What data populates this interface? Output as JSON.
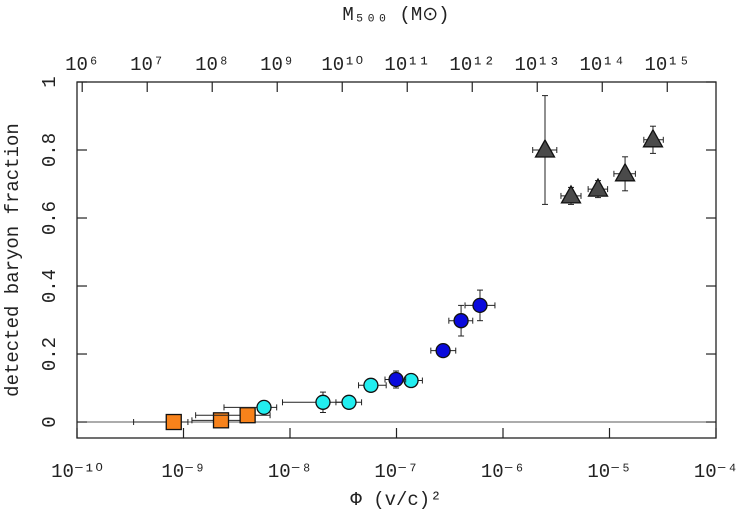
{
  "chart_data": {
    "type": "scatter",
    "xlabel": "Φ (v/c)²",
    "ylabel": "detected baryon fraction",
    "x2label": "M₅₀₀ (M⊙)",
    "xscale": "log",
    "x2scale": "log",
    "xlim": [
      1e-10,
      0.0001
    ],
    "xticks": [
      {
        "value": 1e-10,
        "label": "10⁻¹⁰"
      },
      {
        "value": 1e-09,
        "label": "10⁻⁹"
      },
      {
        "value": 1e-08,
        "label": "10⁻⁸"
      },
      {
        "value": 1e-07,
        "label": "10⁻⁷"
      },
      {
        "value": 1e-06,
        "label": "10⁻⁶"
      },
      {
        "value": 1e-05,
        "label": "10⁻⁵"
      },
      {
        "value": 0.0001,
        "label": "10⁻⁴"
      }
    ],
    "x2lim": [
      831764,
      5620000000000000
    ],
    "x2ticks": [
      {
        "value": 1000000.0,
        "label": "10⁶"
      },
      {
        "value": 10000000.0,
        "label": "10⁷"
      },
      {
        "value": 100000000.0,
        "label": "10⁸"
      },
      {
        "value": 1000000000.0,
        "label": "10⁹"
      },
      {
        "value": 10000000000.0,
        "label": "10¹⁰"
      },
      {
        "value": 100000000000.0,
        "label": "10¹¹"
      },
      {
        "value": 1000000000000.0,
        "label": "10¹²"
      },
      {
        "value": 10000000000000.0,
        "label": "10¹³"
      },
      {
        "value": 100000000000000.0,
        "label": "10¹⁴"
      },
      {
        "value": 1000000000000000.0,
        "label": "10¹⁵"
      }
    ],
    "ylim": [
      -0.047,
      1
    ],
    "yticks": [
      0,
      0.2,
      0.4,
      0.6,
      0.8,
      1
    ],
    "hline": 0,
    "series": [
      {
        "color": "#f7821b",
        "marker": "square",
        "x": [
          8.1e-10,
          2.25e-09,
          4e-09
        ],
        "values": [
          0,
          0.005,
          0.02
        ],
        "yerr": [
          0.004,
          0.004,
          0.004
        ],
        "x_low": [
          3.4e-10,
          1.2e-09,
          1.3e-09
        ],
        "x_high": [
          1.1e-09,
          3.5e-09,
          6.5e-09
        ]
      },
      {
        "color": "#22eef0",
        "marker": "circle",
        "x": [
          5.7e-09,
          2.04e-08,
          3.58e-08,
          5.75e-08,
          1.37e-07
        ],
        "values": [
          0.043,
          0.058,
          0.058,
          0.108,
          0.122
        ],
        "yerr": [
          0.01,
          0.03,
          0.01,
          0.01,
          0.01
        ],
        "x_low": [
          2.4e-09,
          8.5e-09,
          2.7e-08,
          4.4e-08,
          1.08e-07
        ],
        "x_high": [
          7.5e-09,
          3.5e-08,
          4.7e-08,
          8e-08,
          1.75e-07
        ]
      },
      {
        "color": "#0a0adc",
        "marker": "circle",
        "x": [
          9.9e-08,
          2.74e-07,
          4.04e-07,
          6.08e-07
        ],
        "values": [
          0.125,
          0.21,
          0.298,
          0.343
        ],
        "yerr": [
          0.025,
          0.012,
          0.045,
          0.045
        ],
        "x_low": [
          7.8e-08,
          2.1e-07,
          3.1e-07,
          4.4e-07
        ],
        "x_high": [
          1.22e-07,
          3.6e-07,
          5.2e-07,
          8.4e-07
        ]
      },
      {
        "color": "#4a4a4a",
        "marker": "triangle",
        "x": [
          2.48e-06,
          4.35e-06,
          7.8e-06,
          1.4e-05,
          2.56e-05
        ],
        "values": [
          0.8,
          0.665,
          0.685,
          0.73,
          0.83
        ],
        "yerr": [
          0.16,
          0.025,
          0.025,
          0.05,
          0.04
        ],
        "x_low": [
          1.9e-06,
          3.5e-06,
          6.3e-06,
          1.1e-05,
          2.1e-05
        ],
        "x_high": [
          3.2e-06,
          5.4e-06,
          9.6e-06,
          1.75e-05,
          3.2e-05
        ]
      }
    ]
  }
}
